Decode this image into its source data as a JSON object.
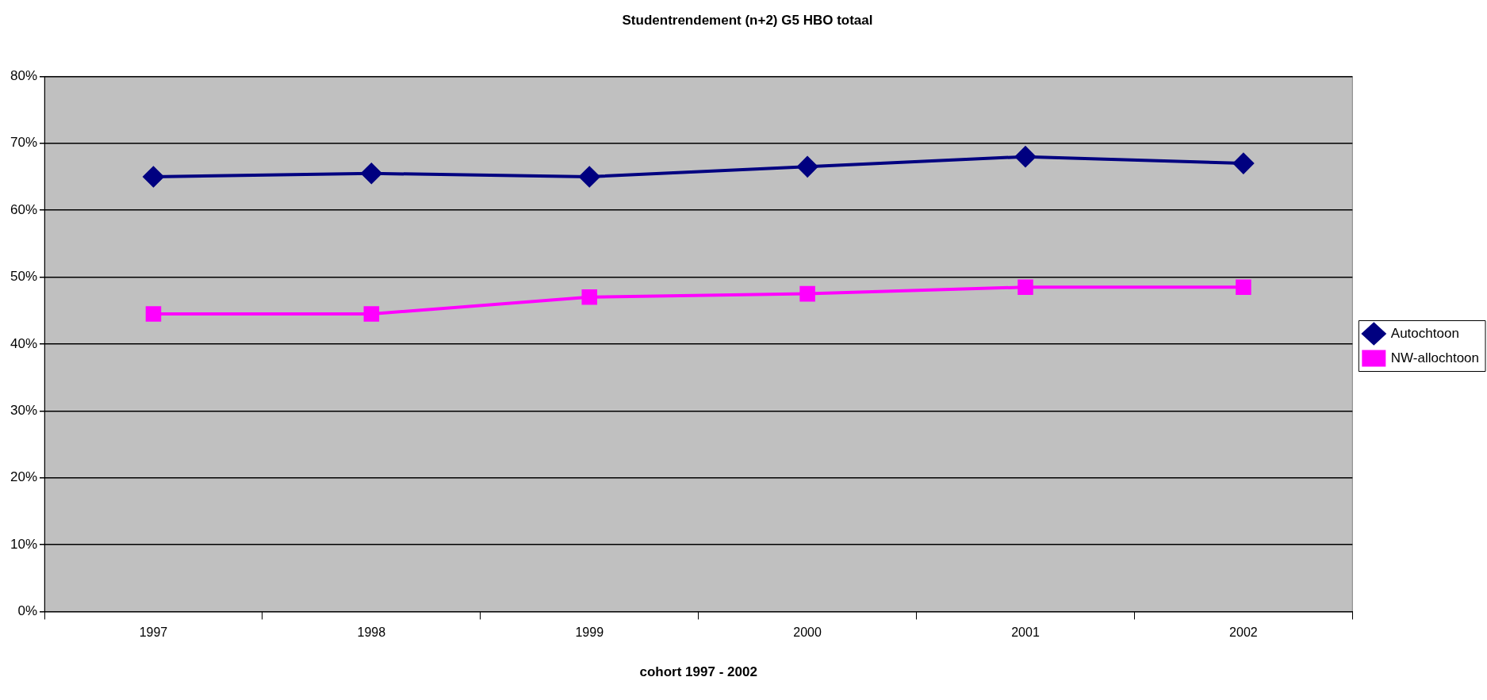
{
  "chart_data": {
    "type": "line",
    "title": "Studentrendement (n+2) G5 HBO totaal",
    "xlabel": "cohort 1997 - 2002",
    "categories": [
      "1997",
      "1998",
      "1999",
      "2000",
      "2001",
      "2002"
    ],
    "series": [
      {
        "name": "Autochtoon",
        "color": "#000080",
        "marker": "diamond",
        "values": [
          65,
          65.5,
          65,
          66.5,
          68,
          67
        ]
      },
      {
        "name": "NW-allochtoon",
        "color": "#ff00ff",
        "marker": "square",
        "values": [
          44.5,
          44.5,
          47,
          47.5,
          48.5,
          48.5
        ]
      }
    ],
    "ylim": [
      0,
      80
    ],
    "yticks": [
      {
        "value": 0,
        "label": "0%"
      },
      {
        "value": 10,
        "label": "10%"
      },
      {
        "value": 20,
        "label": "20%"
      },
      {
        "value": 30,
        "label": "30%"
      },
      {
        "value": 40,
        "label": "40%"
      },
      {
        "value": 50,
        "label": "50%"
      },
      {
        "value": 60,
        "label": "60%"
      },
      {
        "value": 70,
        "label": "70%"
      },
      {
        "value": 80,
        "label": "80%"
      }
    ],
    "grid": "y",
    "legend": "right",
    "line_style": "solid"
  }
}
